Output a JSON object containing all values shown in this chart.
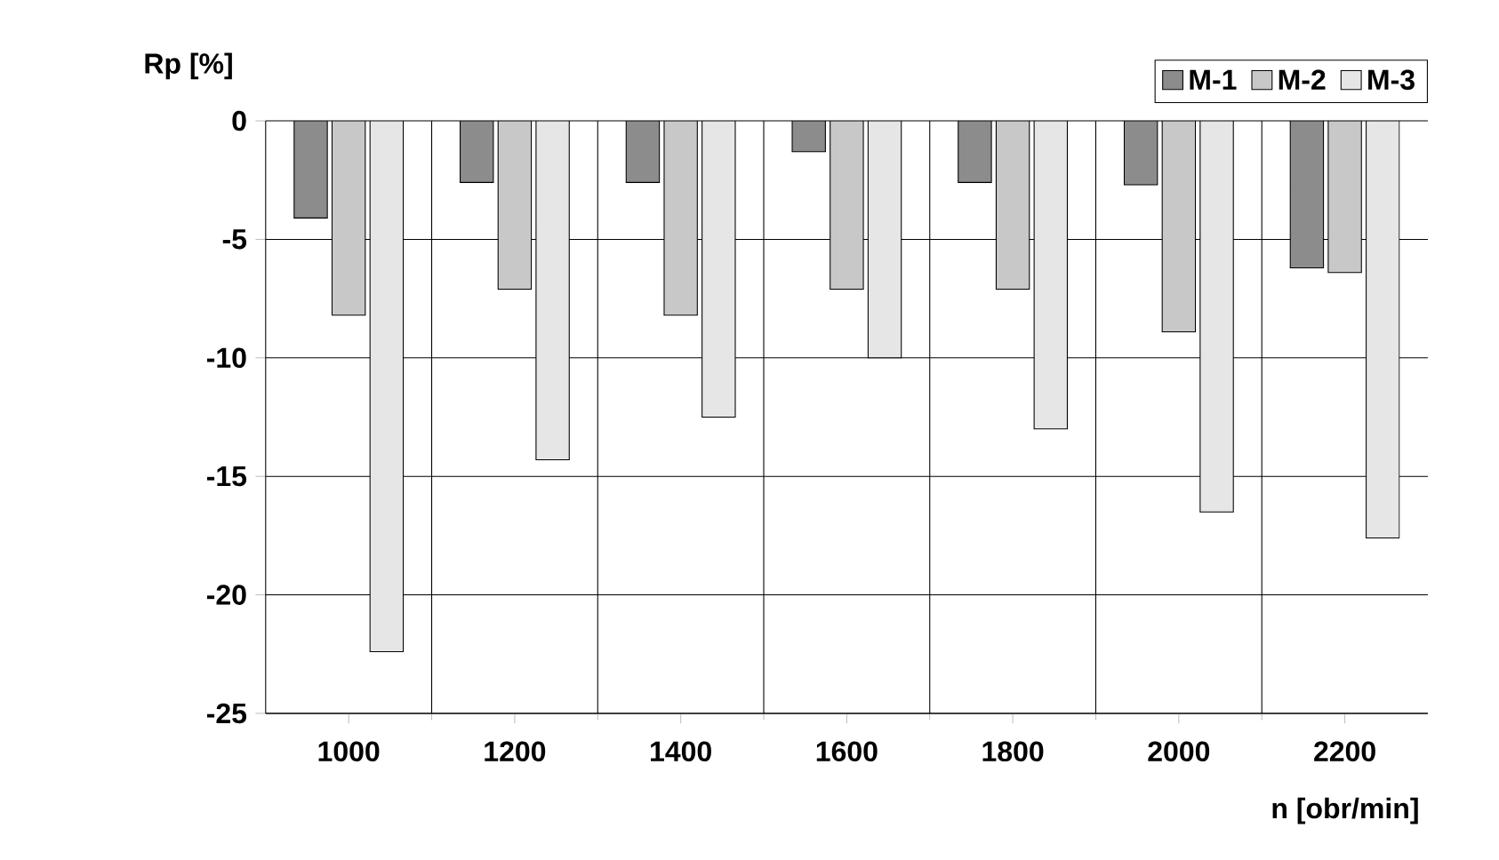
{
  "chart_data": {
    "type": "bar",
    "xlabel": "n [obr/min]",
    "ylabel": "Rp [%]",
    "categories": [
      "1000",
      "1200",
      "1400",
      "1600",
      "1800",
      "2000",
      "2200"
    ],
    "series": [
      {
        "name": "M-1",
        "color": "#8c8c8c",
        "values": [
          -4.1,
          -2.6,
          -2.6,
          -1.3,
          -2.6,
          -2.7,
          -6.2
        ]
      },
      {
        "name": "M-2",
        "color": "#c8c8c8",
        "values": [
          -8.2,
          -7.1,
          -8.2,
          -7.1,
          -7.1,
          -8.9,
          -6.4
        ]
      },
      {
        "name": "M-3",
        "color": "#e6e6e6",
        "values": [
          -22.4,
          -14.3,
          -12.5,
          -10.0,
          -13.0,
          -16.5,
          -17.6
        ]
      }
    ],
    "ylim": [
      -25,
      0
    ],
    "yticks": [
      0,
      -5,
      -10,
      -15,
      -20,
      -25
    ],
    "grid": true,
    "legend": "top right"
  }
}
